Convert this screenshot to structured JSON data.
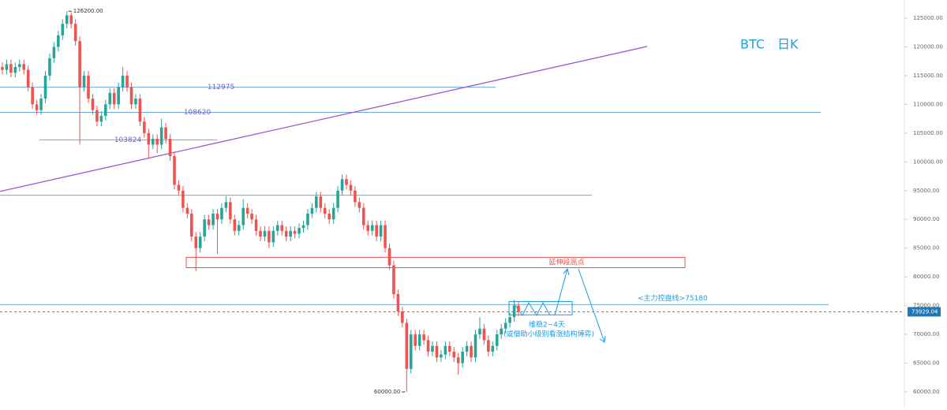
{
  "chart_data": {
    "type": "candlestick",
    "title": "BTC　日K",
    "ohlc": [
      [
        116500,
        117300,
        115200,
        116000
      ],
      [
        116000,
        117800,
        115200,
        117000
      ],
      [
        117000,
        117800,
        114700,
        115500
      ],
      [
        115500,
        117300,
        114700,
        116500
      ],
      [
        116500,
        117800,
        115700,
        117000
      ],
      [
        117000,
        117800,
        115200,
        116000
      ],
      [
        116000,
        116800,
        112200,
        113000
      ],
      [
        113000,
        113800,
        109200,
        110000
      ],
      [
        110000,
        110800,
        108200,
        109000
      ],
      [
        109000,
        111800,
        108200,
        111000
      ],
      [
        111000,
        115800,
        110200,
        115000
      ],
      [
        115000,
        118800,
        114200,
        118000
      ],
      [
        118000,
        120800,
        117200,
        120000
      ],
      [
        120000,
        122800,
        119200,
        122000
      ],
      [
        122000,
        124800,
        121200,
        124000
      ],
      [
        124000,
        126200,
        123200,
        125500
      ],
      [
        125500,
        126000,
        123200,
        124000
      ],
      [
        124000,
        124800,
        120200,
        121000
      ],
      [
        121000,
        121800,
        103000,
        113000
      ],
      [
        113000,
        115800,
        112200,
        115000
      ],
      [
        115000,
        115800,
        110200,
        111000
      ],
      [
        111000,
        111800,
        108200,
        109000
      ],
      [
        109000,
        109800,
        106200,
        107000
      ],
      [
        107000,
        108800,
        106200,
        108000
      ],
      [
        108000,
        110800,
        107200,
        110000
      ],
      [
        110000,
        112800,
        109200,
        112000
      ],
      [
        112000,
        112800,
        109200,
        110000
      ],
      [
        110000,
        113800,
        109200,
        113000
      ],
      [
        113000,
        116500,
        112200,
        115000
      ],
      [
        115000,
        115800,
        112200,
        113000
      ],
      [
        113000,
        113800,
        109200,
        110000
      ],
      [
        110000,
        111800,
        109200,
        111000
      ],
      [
        111000,
        111800,
        106200,
        107000
      ],
      [
        107000,
        107800,
        104200,
        105000
      ],
      [
        105000,
        105800,
        100500,
        103000
      ],
      [
        103000,
        104800,
        102200,
        104000
      ],
      [
        104000,
        104800,
        101500,
        103000
      ],
      [
        103000,
        107500,
        102200,
        106000
      ],
      [
        106000,
        106800,
        103200,
        104000
      ],
      [
        104000,
        104800,
        100200,
        101000
      ],
      [
        101000,
        101800,
        95200,
        96000
      ],
      [
        96000,
        96800,
        94200,
        95000
      ],
      [
        95000,
        95800,
        91200,
        92000
      ],
      [
        92000,
        92800,
        90200,
        91000
      ],
      [
        91000,
        91800,
        86200,
        87000
      ],
      [
        87000,
        87800,
        81000,
        85000
      ],
      [
        85000,
        87800,
        84200,
        87000
      ],
      [
        87000,
        90800,
        86200,
        90000
      ],
      [
        90000,
        90800,
        88200,
        89000
      ],
      [
        89000,
        91800,
        88200,
        91000
      ],
      [
        91000,
        91800,
        84000,
        90000
      ],
      [
        90000,
        92800,
        89200,
        92000
      ],
      [
        92000,
        94000,
        91200,
        93000
      ],
      [
        93000,
        93800,
        89200,
        90000
      ],
      [
        90000,
        90800,
        87200,
        88000
      ],
      [
        88000,
        89800,
        87200,
        89000
      ],
      [
        89000,
        93500,
        88200,
        92000
      ],
      [
        92000,
        92800,
        90200,
        91000
      ],
      [
        91000,
        91800,
        89200,
        90000
      ],
      [
        90000,
        90800,
        87200,
        88000
      ],
      [
        88000,
        88800,
        86200,
        87000
      ],
      [
        87000,
        88800,
        86200,
        88000
      ],
      [
        88000,
        88800,
        85000,
        86000
      ],
      [
        86000,
        88800,
        85200,
        88000
      ],
      [
        88000,
        89800,
        87200,
        89000
      ],
      [
        89000,
        89800,
        87200,
        88000
      ],
      [
        88000,
        88800,
        86200,
        87000
      ],
      [
        87000,
        88800,
        86200,
        88000
      ],
      [
        88000,
        88800,
        86700,
        87500
      ],
      [
        87500,
        89300,
        86700,
        88500
      ],
      [
        88500,
        89800,
        87700,
        89000
      ],
      [
        89000,
        91800,
        88200,
        91000
      ],
      [
        91000,
        92800,
        90200,
        92000
      ],
      [
        92000,
        94800,
        91200,
        94000
      ],
      [
        94000,
        94800,
        91200,
        92000
      ],
      [
        92000,
        92800,
        90200,
        91000
      ],
      [
        91000,
        91800,
        89200,
        90000
      ],
      [
        90000,
        92800,
        89200,
        92000
      ],
      [
        92000,
        95800,
        91200,
        95000
      ],
      [
        95000,
        97800,
        94200,
        97000
      ],
      [
        97000,
        97800,
        95200,
        96000
      ],
      [
        96000,
        96800,
        94200,
        95000
      ],
      [
        95000,
        95800,
        92200,
        93000
      ],
      [
        93000,
        93800,
        91200,
        92000
      ],
      [
        92000,
        92800,
        88200,
        89000
      ],
      [
        89000,
        89800,
        87200,
        88000
      ],
      [
        88000,
        89800,
        87200,
        89000
      ],
      [
        89000,
        89800,
        86200,
        87000
      ],
      [
        87000,
        89800,
        86200,
        89000
      ],
      [
        89000,
        89800,
        84200,
        85000
      ],
      [
        85000,
        85800,
        81200,
        82000
      ],
      [
        82000,
        82800,
        76200,
        77000
      ],
      [
        77000,
        77800,
        73200,
        74000
      ],
      [
        74000,
        74800,
        71200,
        72000
      ],
      [
        72000,
        72800,
        60000,
        64000
      ],
      [
        64000,
        70800,
        63200,
        70000
      ],
      [
        70000,
        70800,
        67200,
        68000
      ],
      [
        68000,
        70800,
        67200,
        70000
      ],
      [
        70000,
        70800,
        68200,
        69000
      ],
      [
        69000,
        69800,
        66200,
        67000
      ],
      [
        67000,
        68800,
        66200,
        68000
      ],
      [
        68000,
        68800,
        65200,
        66000
      ],
      [
        66000,
        67300,
        65200,
        66500
      ],
      [
        66500,
        68800,
        65700,
        68000
      ],
      [
        68000,
        68800,
        66200,
        67000
      ],
      [
        67000,
        67800,
        65200,
        66000
      ],
      [
        66000,
        66800,
        63000,
        65000
      ],
      [
        65000,
        67800,
        64200,
        67000
      ],
      [
        67000,
        68800,
        66200,
        68000
      ],
      [
        68000,
        68800,
        65200,
        66000
      ],
      [
        66000,
        70800,
        65200,
        70000
      ],
      [
        70000,
        73000,
        69200,
        71000
      ],
      [
        71000,
        71800,
        68200,
        69000
      ],
      [
        69000,
        69800,
        66200,
        67000
      ],
      [
        67000,
        68800,
        66200,
        68000
      ],
      [
        68000,
        70800,
        67200,
        70000
      ],
      [
        70000,
        71800,
        69200,
        71000
      ],
      [
        71000,
        72800,
        70200,
        72000
      ],
      [
        72000,
        73800,
        71200,
        73000
      ],
      [
        73000,
        76000,
        72200,
        75000
      ],
      [
        75000,
        75800,
        73200,
        74000
      ]
    ],
    "up_color": "#26a69a",
    "down_color": "#ef5350",
    "ylim": [
      57400,
      128150
    ],
    "yticks": [
      {
        "value": 60000,
        "label": "60000.00"
      },
      {
        "value": 65000,
        "label": "65000.00"
      },
      {
        "value": 70000,
        "label": "70000.00"
      },
      {
        "value": 75000,
        "label": "75000.00"
      },
      {
        "value": 80000,
        "label": "80000.00"
      },
      {
        "value": 85000,
        "label": "85000.00"
      },
      {
        "value": 90000,
        "label": "90000.00"
      },
      {
        "value": 95000,
        "label": "95000.00"
      },
      {
        "value": 100000,
        "label": "100000.00"
      },
      {
        "value": 105000,
        "label": "105000.00"
      },
      {
        "value": 110000,
        "label": "110000.00"
      },
      {
        "value": 115000,
        "label": "115000.00"
      },
      {
        "value": 120000,
        "label": "120000.00"
      },
      {
        "value": 125000,
        "label": "125000.00"
      }
    ],
    "levels": [
      112975,
      108620,
      103824,
      94200,
      75180
    ],
    "main_line_label": "<主力控盘线>75180",
    "trendline": [
      94860,
      120070
    ],
    "zone": [
      81600,
      83400
    ],
    "zone_label": "延伸段高点",
    "range_box": [
      73400,
      75700
    ],
    "last_price": 73929.04,
    "high_label": "126200.00",
    "low_label": "60000.00",
    "notes": [
      "维稳2~4天",
      "(或借助小级别看涨结构博弈)"
    ]
  }
}
